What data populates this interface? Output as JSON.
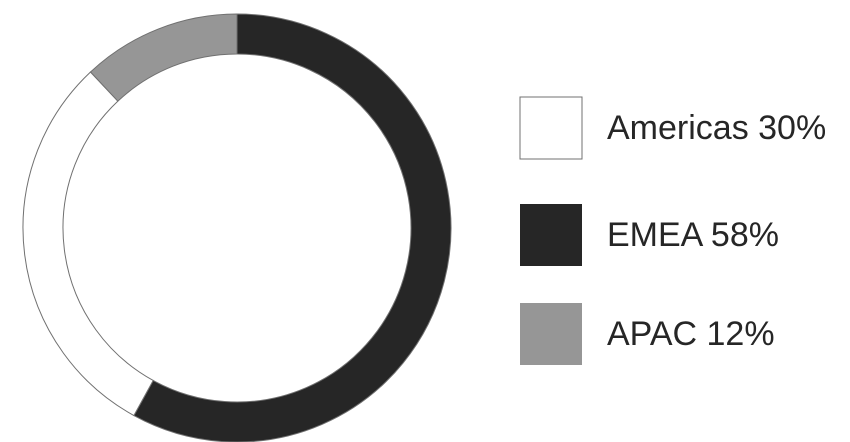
{
  "chart_data": {
    "type": "pie",
    "style": "donut",
    "legend_position": "right",
    "slices": [
      {
        "label": "Americas",
        "value": 30,
        "display": "Americas 30%",
        "color": "#ffffff"
      },
      {
        "label": "EMEA",
        "value": 58,
        "display": "EMEA 58%",
        "color": "#262626"
      },
      {
        "label": "APAC",
        "value": 12,
        "display": "APAC 12%",
        "color": "#969696"
      }
    ],
    "outline_color": "#707070",
    "text_color": "#262626"
  }
}
